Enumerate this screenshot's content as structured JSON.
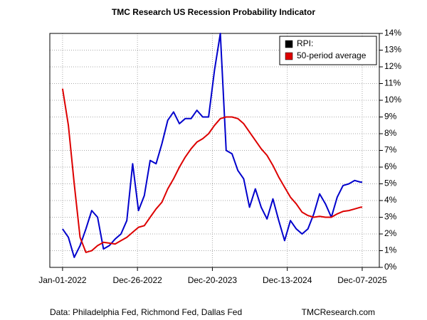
{
  "chart_data": {
    "type": "line",
    "title": "TMC Research US Recession Probability Indicator",
    "note": "Data: Philadelphia Fed, Richmond Fed, Dallas Fed",
    "credit": "TMCResearch.com",
    "x": [
      "2022-01-01",
      "2022-01-29",
      "2022-02-26",
      "2022-03-26",
      "2022-04-23",
      "2022-05-21",
      "2022-06-18",
      "2022-07-16",
      "2022-08-13",
      "2022-09-10",
      "2022-10-08",
      "2022-11-05",
      "2022-12-03",
      "2022-12-31",
      "2023-01-28",
      "2023-02-25",
      "2023-03-25",
      "2023-04-22",
      "2023-05-20",
      "2023-06-17",
      "2023-07-15",
      "2023-08-12",
      "2023-09-09",
      "2023-10-07",
      "2023-11-04",
      "2023-12-02",
      "2023-12-30",
      "2024-01-27",
      "2024-02-24",
      "2024-03-23",
      "2024-04-20",
      "2024-05-18",
      "2024-06-15",
      "2024-07-13",
      "2024-08-10",
      "2024-09-07",
      "2024-10-05",
      "2024-11-02",
      "2024-11-30",
      "2024-12-28",
      "2025-01-25",
      "2025-02-22",
      "2025-03-22",
      "2025-04-19",
      "2025-05-17",
      "2025-06-14",
      "2025-07-12",
      "2025-08-09",
      "2025-09-06",
      "2025-10-04",
      "2025-11-01",
      "2025-11-29",
      "2025-12-07"
    ],
    "series": [
      {
        "name": "RPI:",
        "color": "#0000cc",
        "legend_color": "#000000",
        "values": [
          2.3,
          1.8,
          0.6,
          1.3,
          2.3,
          3.4,
          3.0,
          1.1,
          1.3,
          1.7,
          2.0,
          2.8,
          6.2,
          3.4,
          4.3,
          6.4,
          6.2,
          7.4,
          8.8,
          9.3,
          8.6,
          8.9,
          8.9,
          9.4,
          9.0,
          9.0,
          11.8,
          14.0,
          7.0,
          6.8,
          5.8,
          5.3,
          3.6,
          4.7,
          3.6,
          2.9,
          4.1,
          2.8,
          1.6,
          2.8,
          2.3,
          2.0,
          2.3,
          3.2,
          4.4,
          3.8,
          3.0,
          4.2,
          4.9,
          5.0,
          5.2,
          5.1,
          5.1
        ]
      },
      {
        "name": "50-period average",
        "color": "#dd0000",
        "legend_color": "#dd0000",
        "values": [
          10.7,
          8.5,
          5.0,
          1.8,
          0.9,
          1.0,
          1.3,
          1.5,
          1.45,
          1.4,
          1.6,
          1.8,
          2.1,
          2.4,
          2.5,
          3.0,
          3.5,
          3.9,
          4.7,
          5.3,
          6.0,
          6.6,
          7.1,
          7.5,
          7.7,
          8.0,
          8.5,
          8.9,
          9.0,
          9.0,
          8.9,
          8.6,
          8.1,
          7.6,
          7.1,
          6.7,
          6.1,
          5.4,
          4.8,
          4.2,
          3.8,
          3.3,
          3.1,
          3.0,
          3.05,
          3.0,
          3.0,
          3.2,
          3.35,
          3.4,
          3.5,
          3.6,
          3.6
        ]
      }
    ],
    "xlim": [
      "2021-11-01",
      "2026-02-27"
    ],
    "xticks": [
      {
        "value": "2022-01-01",
        "label": "Jan-01-2022"
      },
      {
        "value": "2022-12-26",
        "label": "Dec-26-2022"
      },
      {
        "value": "2023-12-20",
        "label": "Dec-20-2023"
      },
      {
        "value": "2024-12-13",
        "label": "Dec-13-2024"
      },
      {
        "value": "2025-12-07",
        "label": "Dec-07-2025"
      }
    ],
    "ylim": [
      0,
      14
    ],
    "yticks": [
      {
        "value": 0,
        "label": "0%"
      },
      {
        "value": 1,
        "label": "1%"
      },
      {
        "value": 2,
        "label": "2%"
      },
      {
        "value": 3,
        "label": "3%"
      },
      {
        "value": 4,
        "label": "4%"
      },
      {
        "value": 5,
        "label": "5%"
      },
      {
        "value": 6,
        "label": "6%"
      },
      {
        "value": 7,
        "label": "7%"
      },
      {
        "value": 8,
        "label": "8%"
      },
      {
        "value": 9,
        "label": "9%"
      },
      {
        "value": 10,
        "label": "10%"
      },
      {
        "value": 11,
        "label": "11%"
      },
      {
        "value": 12,
        "label": "12%"
      },
      {
        "value": 13,
        "label": "13%"
      },
      {
        "value": 14,
        "label": "14%"
      }
    ],
    "y_axis_side": "right",
    "grid": true,
    "legend": "top-right"
  }
}
